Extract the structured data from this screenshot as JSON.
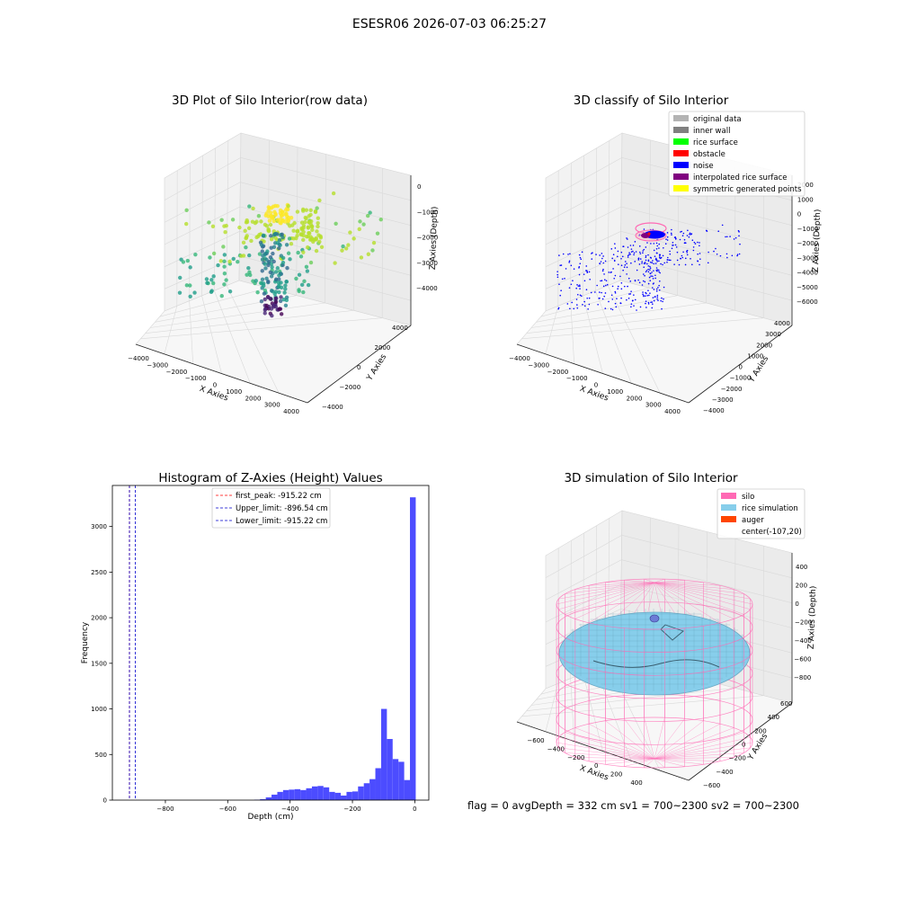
{
  "suptitle": "ESESR06 2026-07-03 06:25:27",
  "footer_text": "flag = 0     avgDepth = 332 cm  sv1 = 700~2300  sv2 = 700~2300",
  "chart_data": [
    {
      "type": "scatter",
      "title": "3D Plot of Silo Interior(row data)",
      "xlabel": "X Axies",
      "ylabel": "Y Axies",
      "zlabel": "Z Axies (Depth)",
      "x_ticks": [
        "−4000",
        "−3000",
        "−2000",
        "−1000",
        "0",
        "1000",
        "2000",
        "3000",
        "4000"
      ],
      "y_ticks": [
        "−4000",
        "−2000",
        "0",
        "2000",
        "4000"
      ],
      "z_ticks": [
        "−4000",
        "−3000",
        "−2000",
        "−1000",
        "0"
      ],
      "xlim": [
        -4000,
        4000
      ],
      "ylim": [
        -4000,
        4000
      ],
      "zlim": [
        -4500,
        0
      ],
      "colormap": "viridis",
      "grid": true
    },
    {
      "type": "scatter",
      "title": "3D classify of Silo Interior",
      "xlabel": "X Axies",
      "ylabel": "Y Axies",
      "zlabel": "Z Axies (Depth)",
      "x_ticks": [
        "−4000",
        "−3000",
        "−2000",
        "−1000",
        "0",
        "1000",
        "2000",
        "3000",
        "4000"
      ],
      "y_ticks": [
        "−4000",
        "−3000",
        "−2000",
        "−1000",
        "0",
        "1000",
        "2000",
        "3000",
        "4000"
      ],
      "z_ticks": [
        "−6000",
        "−5000",
        "−4000",
        "−3000",
        "−2000",
        "−1000",
        "0",
        "1000",
        "2000"
      ],
      "legend_position": "top-right",
      "legend": [
        {
          "label": "original data",
          "color": "#b3b3b3"
        },
        {
          "label": "inner wall",
          "color": "#808080"
        },
        {
          "label": "rice surface",
          "color": "#00ff00"
        },
        {
          "label": "obstacle",
          "color": "#ff0000"
        },
        {
          "label": "noise",
          "color": "#0000ff"
        },
        {
          "label": "interpolated rice surface",
          "color": "#800080"
        },
        {
          "label": "symmetric generated points",
          "color": "#ffff00"
        }
      ],
      "grid": true
    },
    {
      "type": "bar",
      "title": "Histogram of Z-Axies (Height) Values",
      "xlabel": "Depth (cm)",
      "ylabel": "Frequency",
      "xlim": [
        -970,
        45
      ],
      "ylim": [
        0,
        3450
      ],
      "x_ticks": [
        -800,
        -600,
        -400,
        -200,
        0
      ],
      "y_ticks": [
        0,
        500,
        1000,
        1500,
        2000,
        2500,
        3000
      ],
      "bin_width": 18.5,
      "bin_starts": [
        -515,
        -496.5,
        -478,
        -459.5,
        -441,
        -422.5,
        -404,
        -385.5,
        -367,
        -348.5,
        -330,
        -311.5,
        -293,
        -274.5,
        -256,
        -237.5,
        -219,
        -200.5,
        -182,
        -163.5,
        -145,
        -126.5,
        -108,
        -89.5,
        -71,
        -52.5,
        -34,
        -15.5,
        -5
      ],
      "values": [
        5,
        10,
        30,
        60,
        90,
        110,
        115,
        120,
        110,
        130,
        150,
        155,
        140,
        90,
        80,
        50,
        90,
        95,
        150,
        185,
        230,
        350,
        1000,
        670,
        450,
        420,
        220,
        3320,
        50
      ],
      "bar_color": "#4c4cff",
      "legend_position": "top-center",
      "vlines": [
        {
          "x": -915.22,
          "color": "#ff0000",
          "label": "first_peak: -915.22 cm"
        },
        {
          "x": -896.54,
          "color": "#0000cc",
          "label": "Upper_limit: -896.54 cm"
        },
        {
          "x": -915.22,
          "color": "#0000cc",
          "label": "Lower_limit: -915.22 cm"
        }
      ],
      "grid": false
    },
    {
      "type": "surface",
      "title": "3D simulation of Silo Interior",
      "xlabel": "X Axies",
      "ylabel": "Y Axies",
      "zlabel": "Z Axies (Depth)",
      "x_ticks": [
        "−600",
        "−400",
        "−200",
        "0",
        "200",
        "400"
      ],
      "y_ticks": [
        "−600",
        "−400",
        "−200",
        "0",
        "200",
        "400",
        "600"
      ],
      "z_ticks": [
        "−800",
        "−600",
        "−400",
        "−200",
        "0",
        "200",
        "400"
      ],
      "legend_position": "top-right",
      "legend": [
        {
          "label": "silo",
          "color": "#ff69b4"
        },
        {
          "label": "rice simulation",
          "color": "#87ceeb"
        },
        {
          "label": "auger",
          "color": "#ff4500"
        },
        {
          "label": "center(-107,20)",
          "color": "none"
        }
      ],
      "grid": true
    }
  ]
}
